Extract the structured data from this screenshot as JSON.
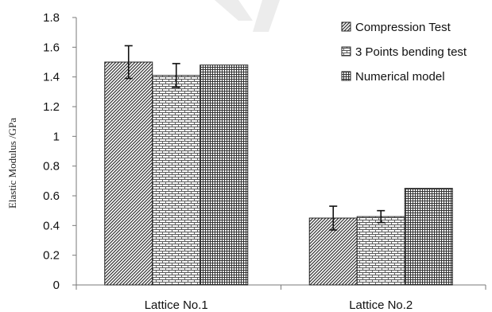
{
  "chart_data": {
    "type": "bar",
    "title": "",
    "xlabel": "",
    "ylabel": "Elastic Modulus /GPa",
    "ylim": [
      0,
      1.8
    ],
    "yticks": [
      "0",
      "0.2",
      "0.4",
      "0.6",
      "0.8",
      "1",
      "1.2",
      "1.4",
      "1.6",
      "1.8"
    ],
    "categories": [
      "Lattice No.1",
      "Lattice No.2"
    ],
    "grid": false,
    "legend_position": "top-right",
    "series": [
      {
        "name": "Compression Test",
        "pattern": "diagonal-hatch",
        "values": [
          1.5,
          0.45
        ],
        "errors": [
          0.11,
          0.08
        ]
      },
      {
        "name": "3 Points bending test",
        "pattern": "brick",
        "values": [
          1.41,
          0.46
        ],
        "errors": [
          0.08,
          0.04
        ]
      },
      {
        "name": "Numerical model",
        "pattern": "dense-grid",
        "values": [
          1.48,
          0.65
        ],
        "errors": [
          null,
          null
        ]
      }
    ],
    "colors": {
      "bar_stroke": "#222222",
      "pattern_ink": "#333333",
      "axis": "#7a7a7a"
    }
  }
}
